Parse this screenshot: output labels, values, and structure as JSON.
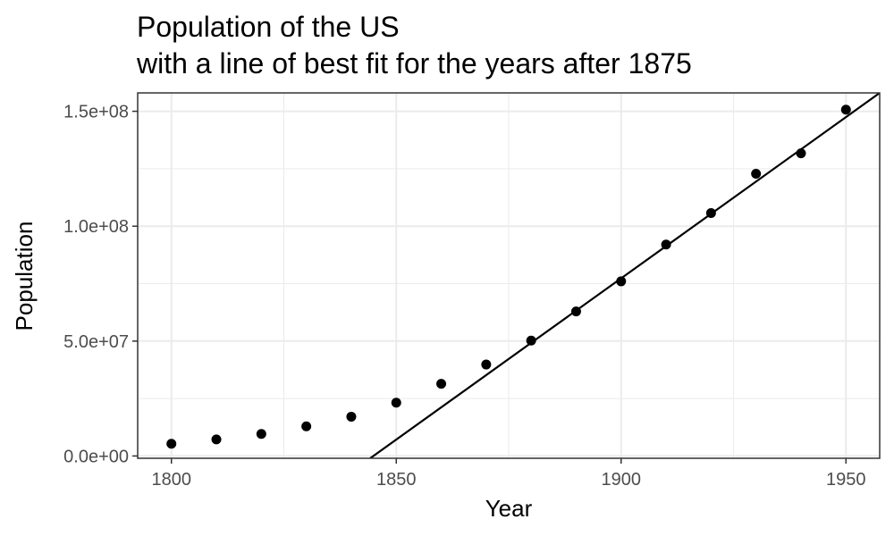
{
  "chart_data": {
    "type": "scatter",
    "title": "Population of the US",
    "subtitle": "with a line of best fit for the years after 1875",
    "xlabel": "Year",
    "ylabel": "Population",
    "xlim": [
      1792.5,
      1957.5
    ],
    "ylim": [
      -1000000,
      158000000
    ],
    "x_ticks": [
      1800,
      1850,
      1900,
      1950
    ],
    "x_tick_labels": [
      "1800",
      "1850",
      "1900",
      "1950"
    ],
    "y_ticks": [
      0,
      50000000,
      100000000,
      150000000
    ],
    "y_tick_labels": [
      "0.0e+00",
      "5.0e+07",
      "1.0e+08",
      "1.5e+08"
    ],
    "x_minor_ticks": [
      1825,
      1875,
      1925
    ],
    "y_minor_ticks": [
      25000000,
      75000000,
      125000000
    ],
    "grid": true,
    "legend": "none",
    "point_color": "#000000",
    "line_color": "#000000",
    "series": [
      {
        "type": "scatter",
        "x": [
          1800,
          1810,
          1820,
          1830,
          1840,
          1850,
          1860,
          1870,
          1880,
          1890,
          1900,
          1910,
          1920,
          1930,
          1940,
          1950
        ],
        "y": [
          5300000,
          7200000,
          9600000,
          12900000,
          17100000,
          23200000,
          31400000,
          39800000,
          50200000,
          62900000,
          76000000,
          92000000,
          105700000,
          122800000,
          131700000,
          150700000
        ]
      },
      {
        "type": "line",
        "x": [
          1844.2,
          1957.5
        ],
        "y": [
          -1000000,
          158000000
        ]
      }
    ]
  }
}
